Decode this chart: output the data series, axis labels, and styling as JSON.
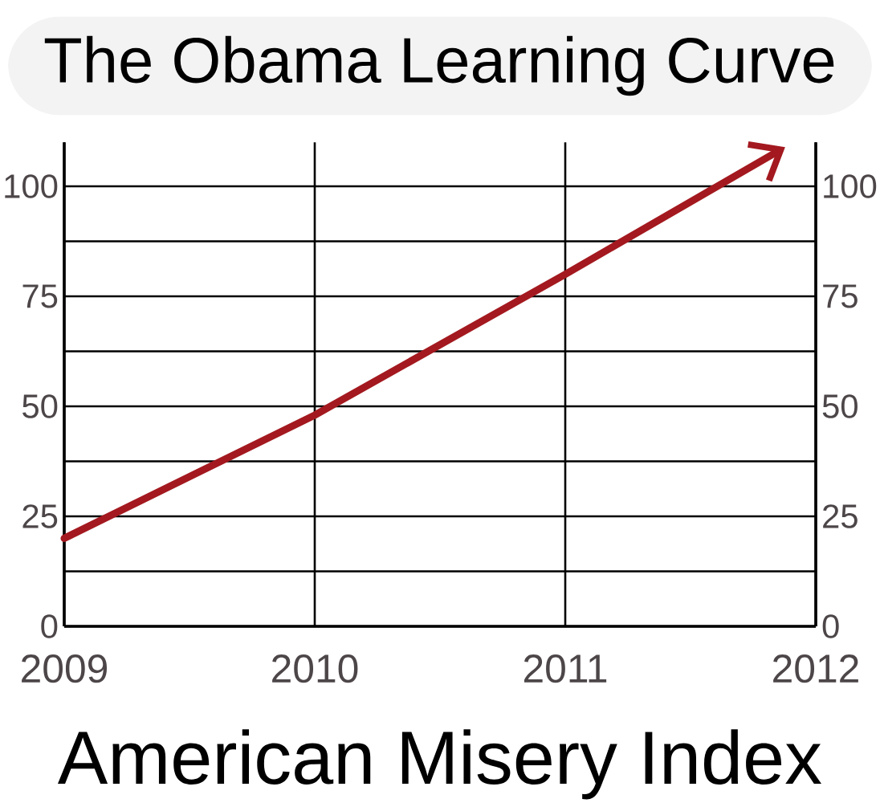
{
  "chart_data": {
    "type": "line",
    "title": "The Obama Learning Curve",
    "xlabel": "American Misery Index",
    "x": [
      2009,
      2010,
      2011,
      2011.85
    ],
    "values": [
      20,
      48,
      80,
      108
    ],
    "color": "#a3191f",
    "xlim": [
      2009,
      2012
    ],
    "xticks": [
      2009,
      2010,
      2011,
      2012
    ],
    "ylim": [
      0,
      110
    ],
    "yticks": [
      0,
      25,
      50,
      75,
      100
    ],
    "y2lim": [
      0,
      110
    ],
    "y2ticks": [
      0,
      25,
      50,
      75,
      100
    ],
    "grid": true
  }
}
